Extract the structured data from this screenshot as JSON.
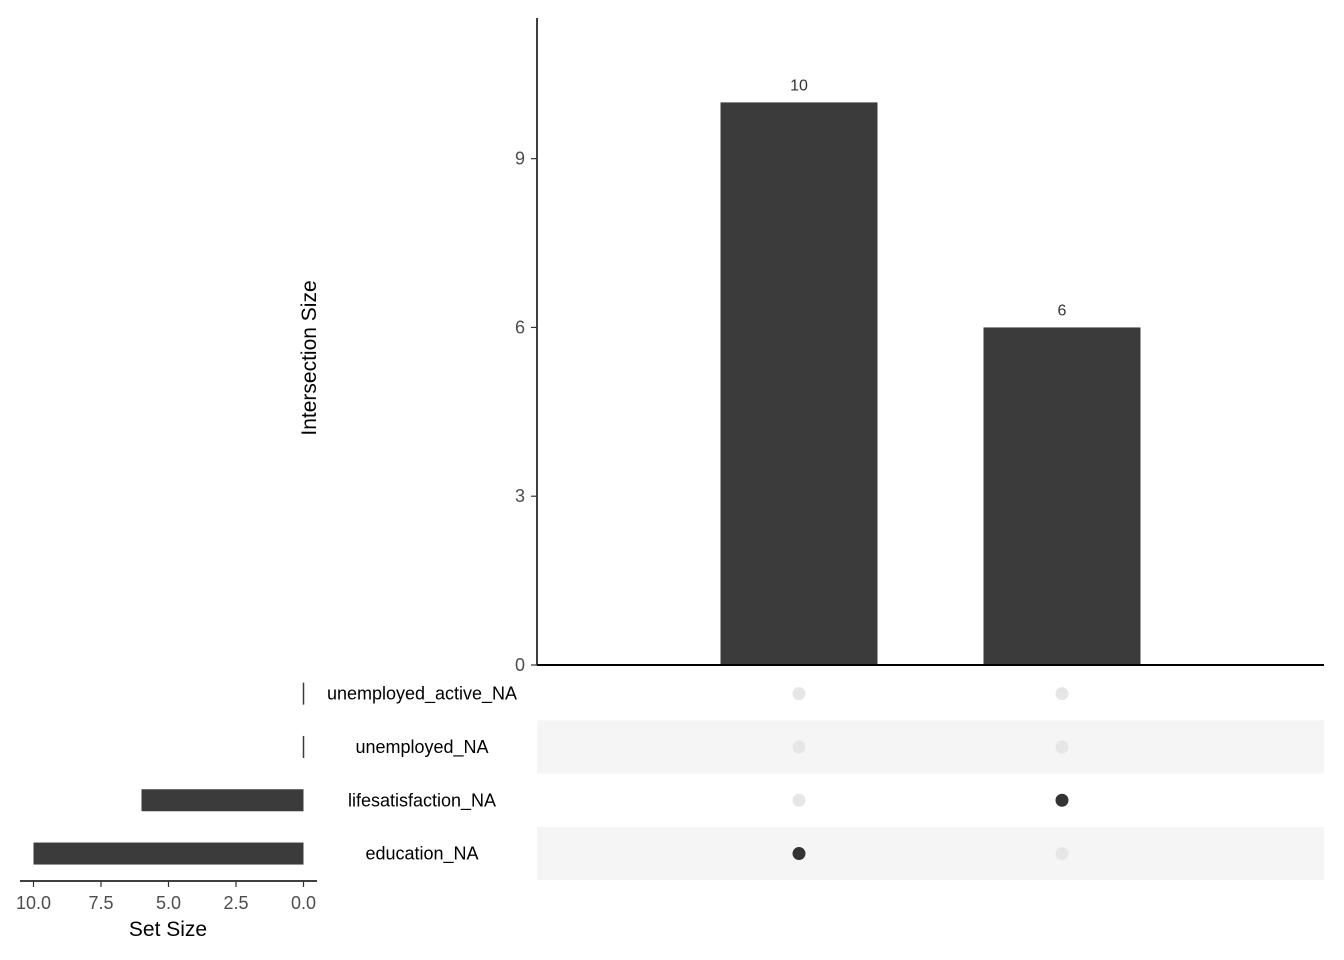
{
  "chart_data": {
    "type": "bar",
    "subtype": "upset",
    "intersection_axis": {
      "label": "Intersection Size",
      "ylim": [
        0,
        11.5
      ],
      "ticks": [
        0,
        3,
        6,
        9
      ]
    },
    "intersections": [
      {
        "value": 10,
        "label": "10",
        "members": [
          "education_NA"
        ]
      },
      {
        "value": 6,
        "label": "6",
        "members": [
          "lifesatisfaction_NA"
        ]
      }
    ],
    "sets": [
      {
        "name": "unemployed_active_NA",
        "size": 0
      },
      {
        "name": "unemployed_NA",
        "size": 0
      },
      {
        "name": "lifesatisfaction_NA",
        "size": 6
      },
      {
        "name": "education_NA",
        "size": 10
      }
    ],
    "set_size_axis": {
      "label": "Set Size",
      "xlim": [
        10.5,
        -0.5
      ],
      "ticks": [
        10.0,
        7.5,
        5.0,
        2.5,
        0.0
      ],
      "tick_labels": [
        "10.0",
        "7.5",
        "5.0",
        "2.5",
        "0.0"
      ]
    },
    "colors": {
      "bar": "#3b3b3b",
      "dot_active": "#333333",
      "dot_inactive": "#e6e6e6",
      "stripe": "#f5f5f5"
    }
  }
}
